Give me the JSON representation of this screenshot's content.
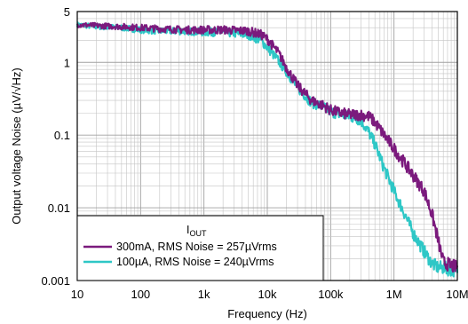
{
  "chart_data": {
    "type": "line",
    "xlabel": "Frequency (Hz)",
    "ylabel": "Output voltage Noise (µV/√Hz)",
    "x_scale": "log",
    "y_scale": "log",
    "xlim": [
      10,
      10000000
    ],
    "ylim": [
      0.001,
      5
    ],
    "grid": true,
    "x_ticks": [
      "10",
      "100",
      "1k",
      "10k",
      "100k",
      "1M",
      "10M"
    ],
    "y_ticks": [
      "0.001",
      "0.01",
      "0.1",
      "1",
      "5"
    ],
    "legend": {
      "title_main": "I",
      "title_sub": "OUT",
      "placement": "bottom-left"
    },
    "colors": {
      "series_1": "#7b1a7d",
      "series_2": "#2ec7c6"
    },
    "series": [
      {
        "name": "300mA, RMS Noise = 257µVrms",
        "x": [
          10,
          20,
          50,
          100,
          200,
          500,
          1000,
          2000,
          5000,
          8000,
          10000,
          15000,
          20000,
          30000,
          50000,
          80000,
          100000,
          150000,
          200000,
          300000,
          400000,
          500000,
          700000,
          1000000,
          1500000,
          2000000,
          3000000,
          4000000,
          5000000,
          6000000,
          8000000,
          10000000
        ],
        "values": [
          3.3,
          3.2,
          3.1,
          3.0,
          2.9,
          2.8,
          2.8,
          2.8,
          2.7,
          2.4,
          2.1,
          1.35,
          0.85,
          0.48,
          0.3,
          0.25,
          0.22,
          0.2,
          0.19,
          0.19,
          0.18,
          0.15,
          0.1,
          0.065,
          0.04,
          0.028,
          0.017,
          0.008,
          0.0035,
          0.0018,
          0.0016,
          0.0015
        ]
      },
      {
        "name": "100µA, RMS Noise = 240µVrms",
        "x": [
          10,
          20,
          50,
          100,
          200,
          500,
          1000,
          2000,
          5000,
          8000,
          10000,
          15000,
          20000,
          30000,
          50000,
          80000,
          100000,
          150000,
          200000,
          300000,
          400000,
          500000,
          700000,
          1000000,
          1500000,
          2000000,
          3000000,
          4000000,
          5000000,
          6000000,
          8000000,
          10000000
        ],
        "values": [
          3.3,
          3.1,
          3.0,
          2.8,
          2.7,
          2.7,
          2.6,
          2.6,
          2.4,
          2.0,
          1.6,
          1.05,
          0.75,
          0.45,
          0.28,
          0.24,
          0.21,
          0.19,
          0.18,
          0.16,
          0.11,
          0.075,
          0.035,
          0.017,
          0.008,
          0.0045,
          0.0025,
          0.0017,
          0.0015,
          0.0015,
          0.0014,
          0.0014
        ]
      }
    ]
  }
}
